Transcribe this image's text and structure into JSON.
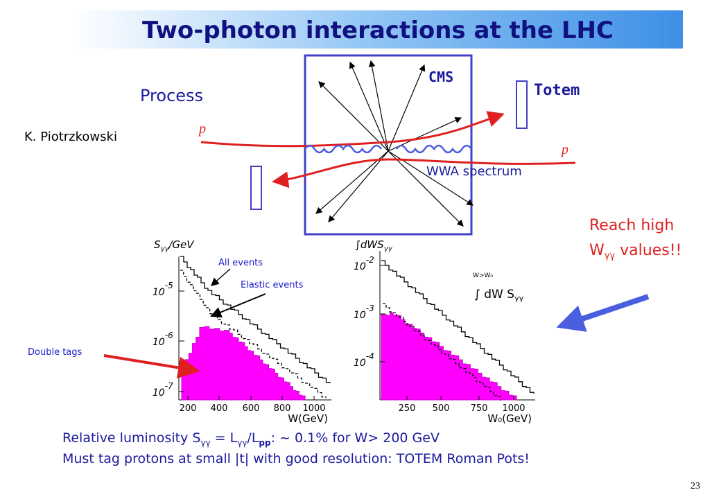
{
  "header": {
    "title": "Two-photon interactions at the LHC"
  },
  "diagram": {
    "process": "Process",
    "author": "K. Piotrzkowski",
    "cms": "CMS",
    "totem": "Totem",
    "proton_1": "p",
    "proton_2": "p",
    "wwa": "WWA spectrum"
  },
  "callout": {
    "line_1": "Reach high",
    "w": "W",
    "sub": "γγ",
    "rest": " values!!"
  },
  "plot_1": {
    "y_label": {
      "s": "S",
      "sub": "γγ",
      "rest": "/GeV"
    },
    "annotations": [
      "All events",
      "Elastic events",
      "Double tags"
    ],
    "y_ticks": [
      {
        "base": "10",
        "exp": "-5"
      },
      {
        "base": "10",
        "exp": "-6"
      },
      {
        "base": "10",
        "exp": "-7"
      }
    ],
    "x_ticks": [
      "200",
      "400",
      "600",
      "800",
      "1000"
    ],
    "x_label": "W(GeV)"
  },
  "plot_2": {
    "y_label": {
      "int": "∫dWS",
      "sub": "γγ"
    },
    "y_ticks": [
      {
        "base": "10",
        "exp": "-2"
      },
      {
        "base": "10",
        "exp": "-3"
      },
      {
        "base": "10",
        "exp": "-4"
      }
    ],
    "x_ticks": [
      "250",
      "500",
      "750",
      "1000"
    ],
    "x_label": "W₀(GeV)",
    "inset": {
      "cond": "W>W₀",
      "int": "∫ dW S",
      "sub": "γγ"
    }
  },
  "footer": {
    "line_1": [
      "Relative luminosity S",
      "γγ",
      " = L",
      "γγ",
      "/L",
      "pp",
      ": ~ 0.1% for W> 200 GeV"
    ],
    "line_2": "Must tag protons at small |t| with good resolution:  TOTEM Roman Pots!"
  },
  "page_number": "23"
}
